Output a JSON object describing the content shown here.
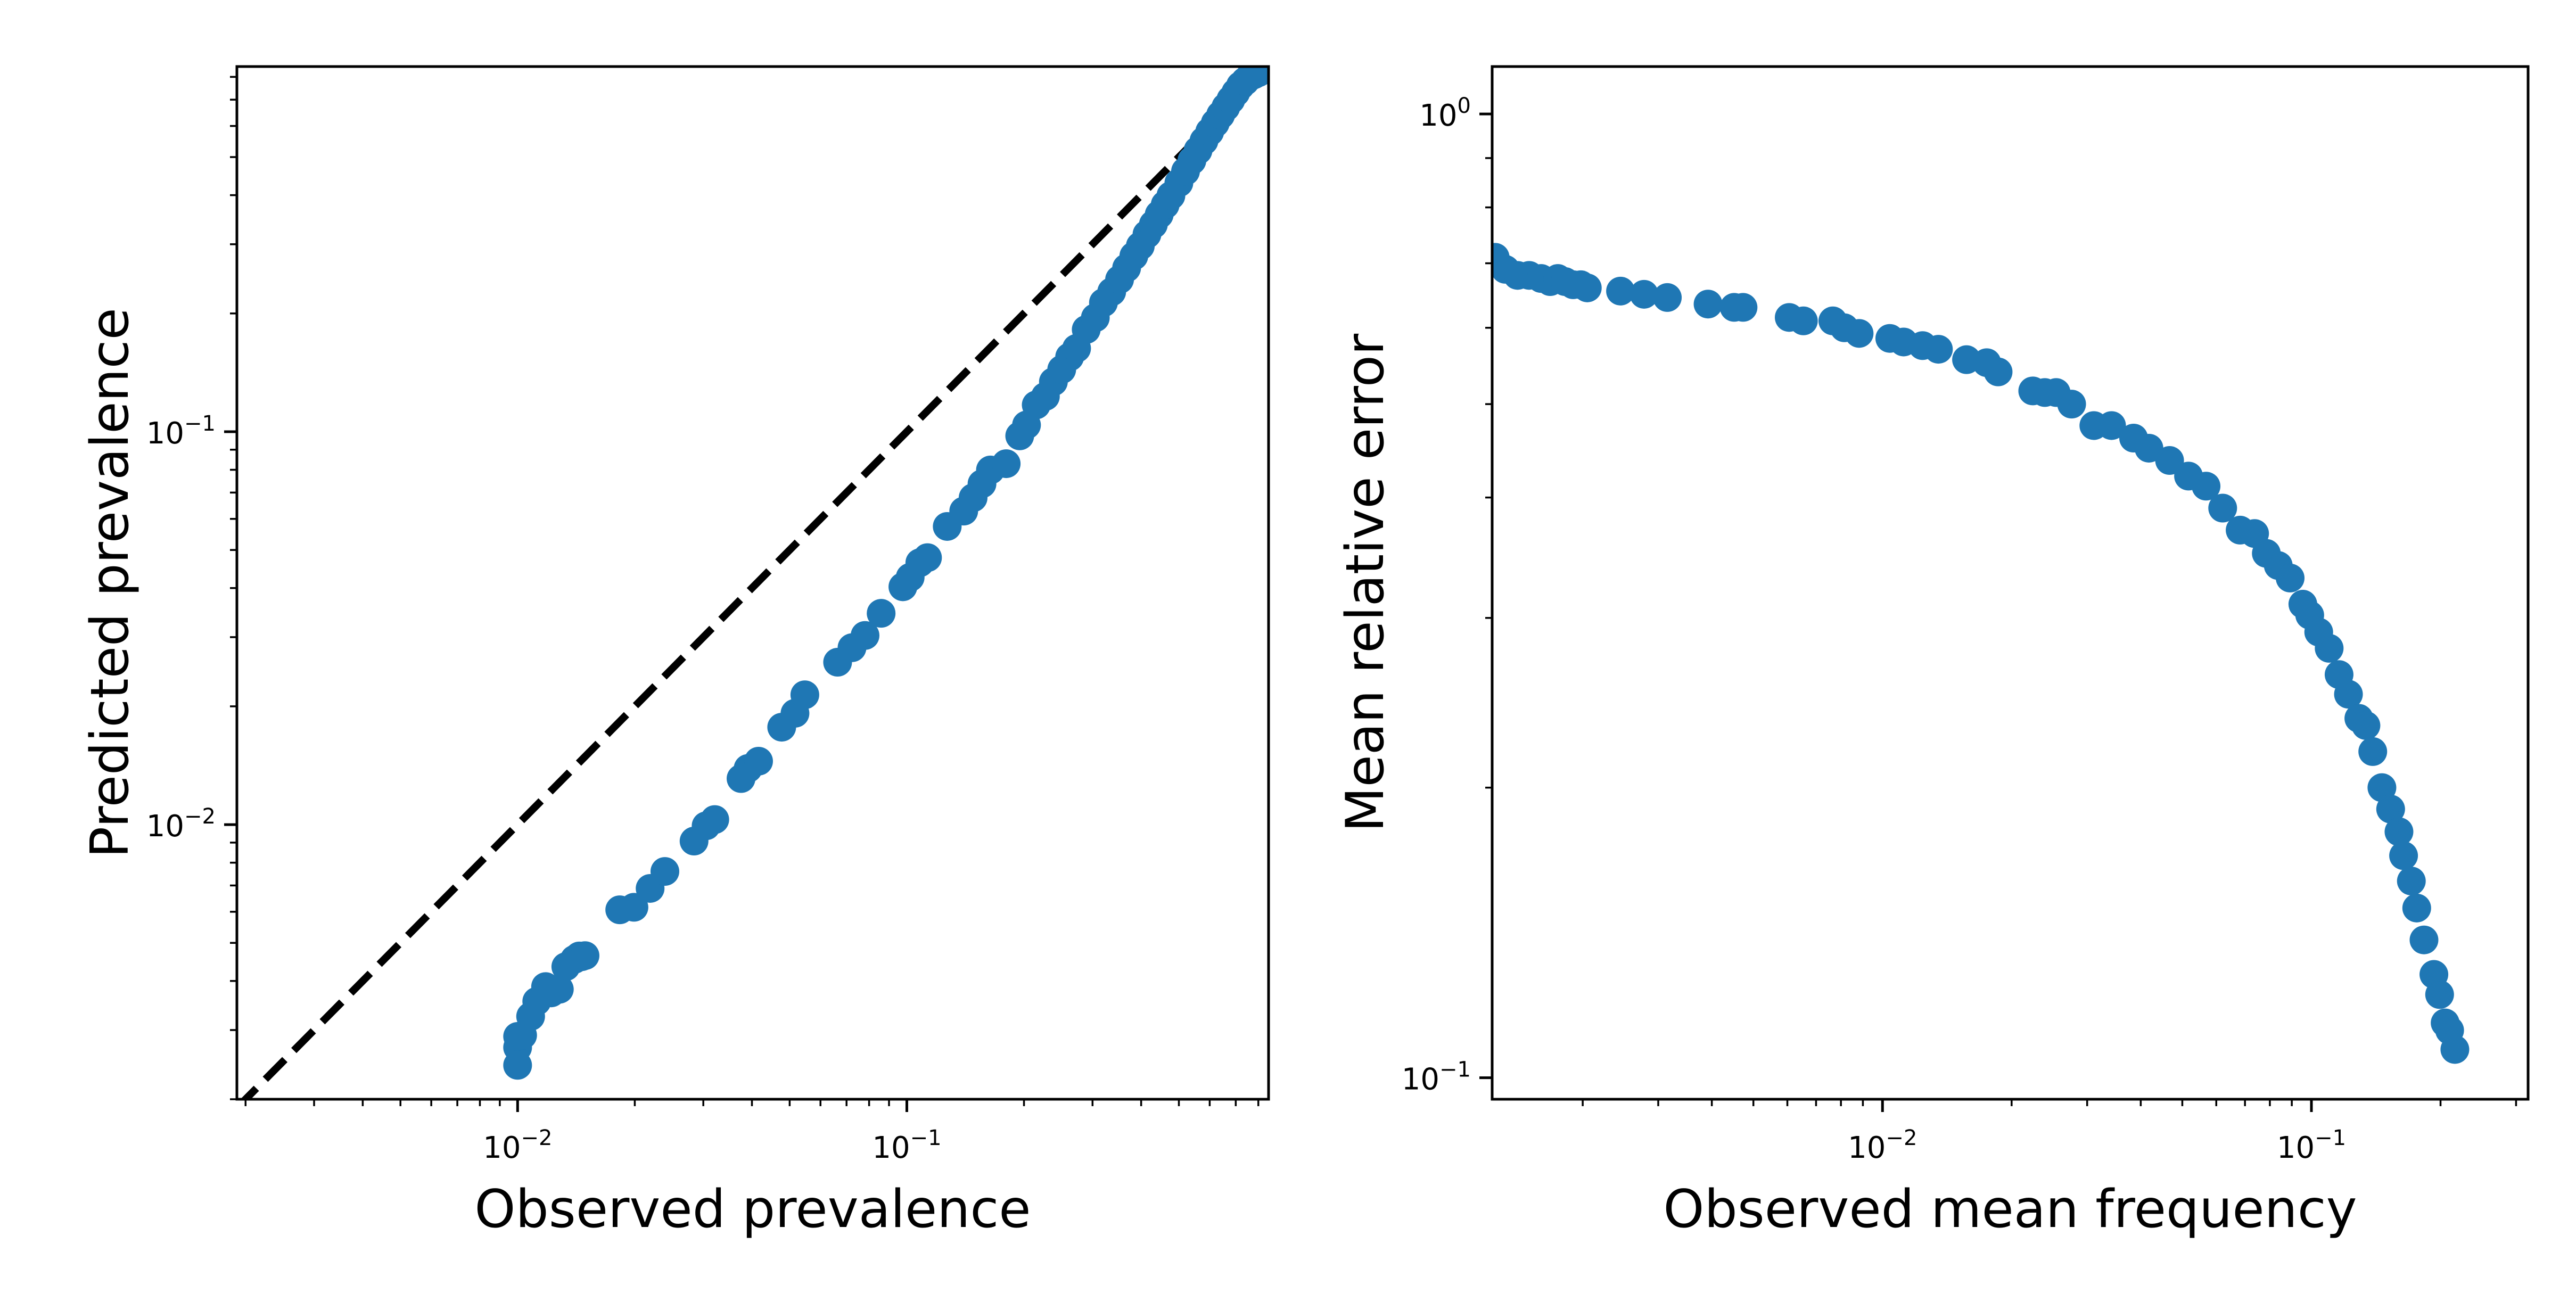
{
  "chart_data": [
    {
      "type": "scatter",
      "xlabel": "Observed prevalence",
      "ylabel": "Predicted prevalence",
      "xscale": "log",
      "yscale": "log",
      "xlim": [
        0.0019,
        0.85
      ],
      "ylim": [
        0.002,
        0.85
      ],
      "xticks": [
        {
          "value": 0.01,
          "base": "10",
          "exp": "−2"
        },
        {
          "value": 0.1,
          "base": "10",
          "exp": "−1"
        }
      ],
      "yticks": [
        {
          "value": 0.01,
          "base": "10",
          "exp": "−2"
        },
        {
          "value": 0.1,
          "base": "10",
          "exp": "−1"
        }
      ],
      "grid": false,
      "marker_color": "#1f77b4",
      "reference_line": {
        "style": "dashed",
        "color": "#000000",
        "x": [
          0.0019,
          0.85
        ],
        "y": [
          0.0019,
          0.85
        ]
      },
      "x": [
        0.01,
        0.01,
        0.01,
        0.0103,
        0.0108,
        0.0112,
        0.0118,
        0.0122,
        0.0128,
        0.0133,
        0.014,
        0.0144,
        0.0146,
        0.0149,
        0.0183,
        0.0199,
        0.0219,
        0.0239,
        0.0284,
        0.0305,
        0.0321,
        0.0375,
        0.0391,
        0.0416,
        0.0477,
        0.0516,
        0.0547,
        0.0664,
        0.0723,
        0.0781,
        0.0859,
        0.0977,
        0.102,
        0.108,
        0.113,
        0.127,
        0.14,
        0.148,
        0.156,
        0.164,
        0.18,
        0.195,
        0.203,
        0.215,
        0.227,
        0.238,
        0.25,
        0.262,
        0.273,
        0.289,
        0.305,
        0.32,
        0.336,
        0.352,
        0.367,
        0.383,
        0.398,
        0.414,
        0.43,
        0.445,
        0.461,
        0.477,
        0.5,
        0.52,
        0.54,
        0.56,
        0.58,
        0.6,
        0.62,
        0.64,
        0.66,
        0.68,
        0.7,
        0.72,
        0.74,
        0.76,
        0.78,
        0.8,
        0.82,
        0.84
      ],
      "y": [
        0.00244,
        0.00271,
        0.00289,
        0.00291,
        0.00325,
        0.00355,
        0.00387,
        0.00373,
        0.00381,
        0.00435,
        0.00454,
        0.00463,
        0.00461,
        0.00464,
        0.00607,
        0.00616,
        0.00688,
        0.0076,
        0.00908,
        0.00993,
        0.0103,
        0.0131,
        0.0139,
        0.0145,
        0.0177,
        0.0192,
        0.0214,
        0.0259,
        0.0282,
        0.0303,
        0.0345,
        0.0403,
        0.0426,
        0.0464,
        0.0478,
        0.0574,
        0.0628,
        0.0679,
        0.0737,
        0.0799,
        0.0829,
        0.0976,
        0.104,
        0.117,
        0.123,
        0.134,
        0.144,
        0.155,
        0.163,
        0.182,
        0.195,
        0.213,
        0.227,
        0.244,
        0.261,
        0.28,
        0.297,
        0.318,
        0.337,
        0.357,
        0.378,
        0.399,
        0.43,
        0.46,
        0.49,
        0.52,
        0.55,
        0.58,
        0.61,
        0.64,
        0.67,
        0.7,
        0.73,
        0.76,
        0.78,
        0.8,
        0.81,
        0.82,
        0.83,
        0.84
      ]
    },
    {
      "type": "scatter",
      "xlabel": "Observed mean frequency",
      "ylabel": "Mean relative error",
      "xscale": "log",
      "yscale": "log",
      "xlim": [
        0.00123,
        0.32
      ],
      "ylim": [
        0.095,
        1.12
      ],
      "xticks": [
        {
          "value": 0.01,
          "base": "10",
          "exp": "−2"
        },
        {
          "value": 0.1,
          "base": "10",
          "exp": "−1"
        }
      ],
      "yticks": [
        {
          "value": 0.1,
          "base": "10",
          "exp": "−1"
        },
        {
          "value": 1.0,
          "base": "10",
          "exp": "0"
        }
      ],
      "grid": false,
      "marker_color": "#1f77b4",
      "x": [
        0.00125,
        0.00132,
        0.00141,
        0.0015,
        0.0016,
        0.00168,
        0.00175,
        0.00182,
        0.0019,
        0.00198,
        0.00205,
        0.00245,
        0.00278,
        0.00315,
        0.00392,
        0.00451,
        0.00473,
        0.00606,
        0.00654,
        0.00766,
        0.00815,
        0.00882,
        0.0104,
        0.0112,
        0.0124,
        0.0135,
        0.0157,
        0.0175,
        0.0186,
        0.0224,
        0.0239,
        0.0254,
        0.0276,
        0.0311,
        0.0342,
        0.0385,
        0.0418,
        0.0467,
        0.0517,
        0.0568,
        0.0621,
        0.0682,
        0.0737,
        0.0785,
        0.0837,
        0.0892,
        0.0955,
        0.0991,
        0.104,
        0.11,
        0.116,
        0.122,
        0.129,
        0.134,
        0.139,
        0.146,
        0.153,
        0.16,
        0.164,
        0.171,
        0.176,
        0.183,
        0.193,
        0.199,
        0.205,
        0.21,
        0.216
      ],
      "y": [
        0.71,
        0.69,
        0.68,
        0.68,
        0.675,
        0.67,
        0.675,
        0.67,
        0.665,
        0.665,
        0.66,
        0.655,
        0.65,
        0.645,
        0.635,
        0.63,
        0.63,
        0.615,
        0.61,
        0.61,
        0.6,
        0.592,
        0.585,
        0.58,
        0.575,
        0.57,
        0.556,
        0.552,
        0.54,
        0.516,
        0.514,
        0.514,
        0.5,
        0.475,
        0.475,
        0.461,
        0.45,
        0.437,
        0.421,
        0.411,
        0.39,
        0.37,
        0.367,
        0.35,
        0.34,
        0.33,
        0.31,
        0.302,
        0.29,
        0.279,
        0.262,
        0.25,
        0.236,
        0.232,
        0.218,
        0.2,
        0.19,
        0.18,
        0.17,
        0.16,
        0.15,
        0.139,
        0.128,
        0.122,
        0.114,
        0.112,
        0.107
      ]
    }
  ]
}
